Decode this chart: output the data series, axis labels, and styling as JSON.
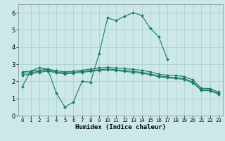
{
  "title": "",
  "xlabel": "Humidex (Indice chaleur)",
  "xlim": [
    -0.5,
    23.5
  ],
  "ylim": [
    0,
    6.5
  ],
  "xticks": [
    0,
    1,
    2,
    3,
    4,
    5,
    6,
    7,
    8,
    9,
    10,
    11,
    12,
    13,
    14,
    15,
    16,
    17,
    18,
    19,
    20,
    21,
    22,
    23
  ],
  "yticks": [
    0,
    1,
    2,
    3,
    4,
    5,
    6
  ],
  "bg_color": "#cce8e8",
  "line_color": "#1a7a6a",
  "grid_color": "#aacece",
  "series": [
    {
      "x": [
        0,
        1,
        2,
        3,
        4,
        5,
        6,
        7,
        8,
        9,
        10,
        11,
        12,
        13,
        14,
        15,
        16,
        17
      ],
      "y": [
        1.7,
        2.6,
        2.8,
        2.7,
        1.3,
        0.5,
        0.8,
        2.0,
        1.95,
        3.6,
        5.7,
        5.55,
        5.8,
        6.0,
        5.85,
        5.1,
        4.6,
        3.3
      ]
    },
    {
      "x": [
        0,
        1,
        2,
        3,
        4,
        5,
        6,
        7,
        8,
        9,
        10,
        11,
        12,
        13,
        14,
        15,
        16,
        17,
        18,
        19,
        20,
        21,
        22,
        23
      ],
      "y": [
        2.55,
        2.6,
        2.65,
        2.72,
        2.62,
        2.55,
        2.6,
        2.65,
        2.72,
        2.78,
        2.82,
        2.78,
        2.74,
        2.7,
        2.65,
        2.55,
        2.42,
        2.36,
        2.34,
        2.28,
        2.08,
        1.6,
        1.58,
        1.38
      ]
    },
    {
      "x": [
        0,
        1,
        2,
        3,
        4,
        5,
        6,
        7,
        8,
        9,
        10,
        11,
        12,
        13,
        14,
        15,
        16,
        17,
        18,
        19,
        20,
        21,
        22,
        23
      ],
      "y": [
        2.45,
        2.52,
        2.58,
        2.65,
        2.55,
        2.48,
        2.53,
        2.58,
        2.63,
        2.68,
        2.72,
        2.68,
        2.63,
        2.58,
        2.53,
        2.43,
        2.32,
        2.26,
        2.22,
        2.16,
        1.96,
        1.52,
        1.5,
        1.3
      ]
    },
    {
      "x": [
        0,
        1,
        2,
        3,
        4,
        5,
        6,
        7,
        8,
        9,
        10,
        11,
        12,
        13,
        14,
        15,
        16,
        17,
        18,
        19,
        20,
        21,
        22,
        23
      ],
      "y": [
        2.35,
        2.44,
        2.52,
        2.6,
        2.5,
        2.43,
        2.48,
        2.53,
        2.58,
        2.63,
        2.67,
        2.63,
        2.58,
        2.53,
        2.48,
        2.38,
        2.27,
        2.21,
        2.17,
        2.11,
        1.91,
        1.47,
        1.45,
        1.25
      ]
    }
  ]
}
